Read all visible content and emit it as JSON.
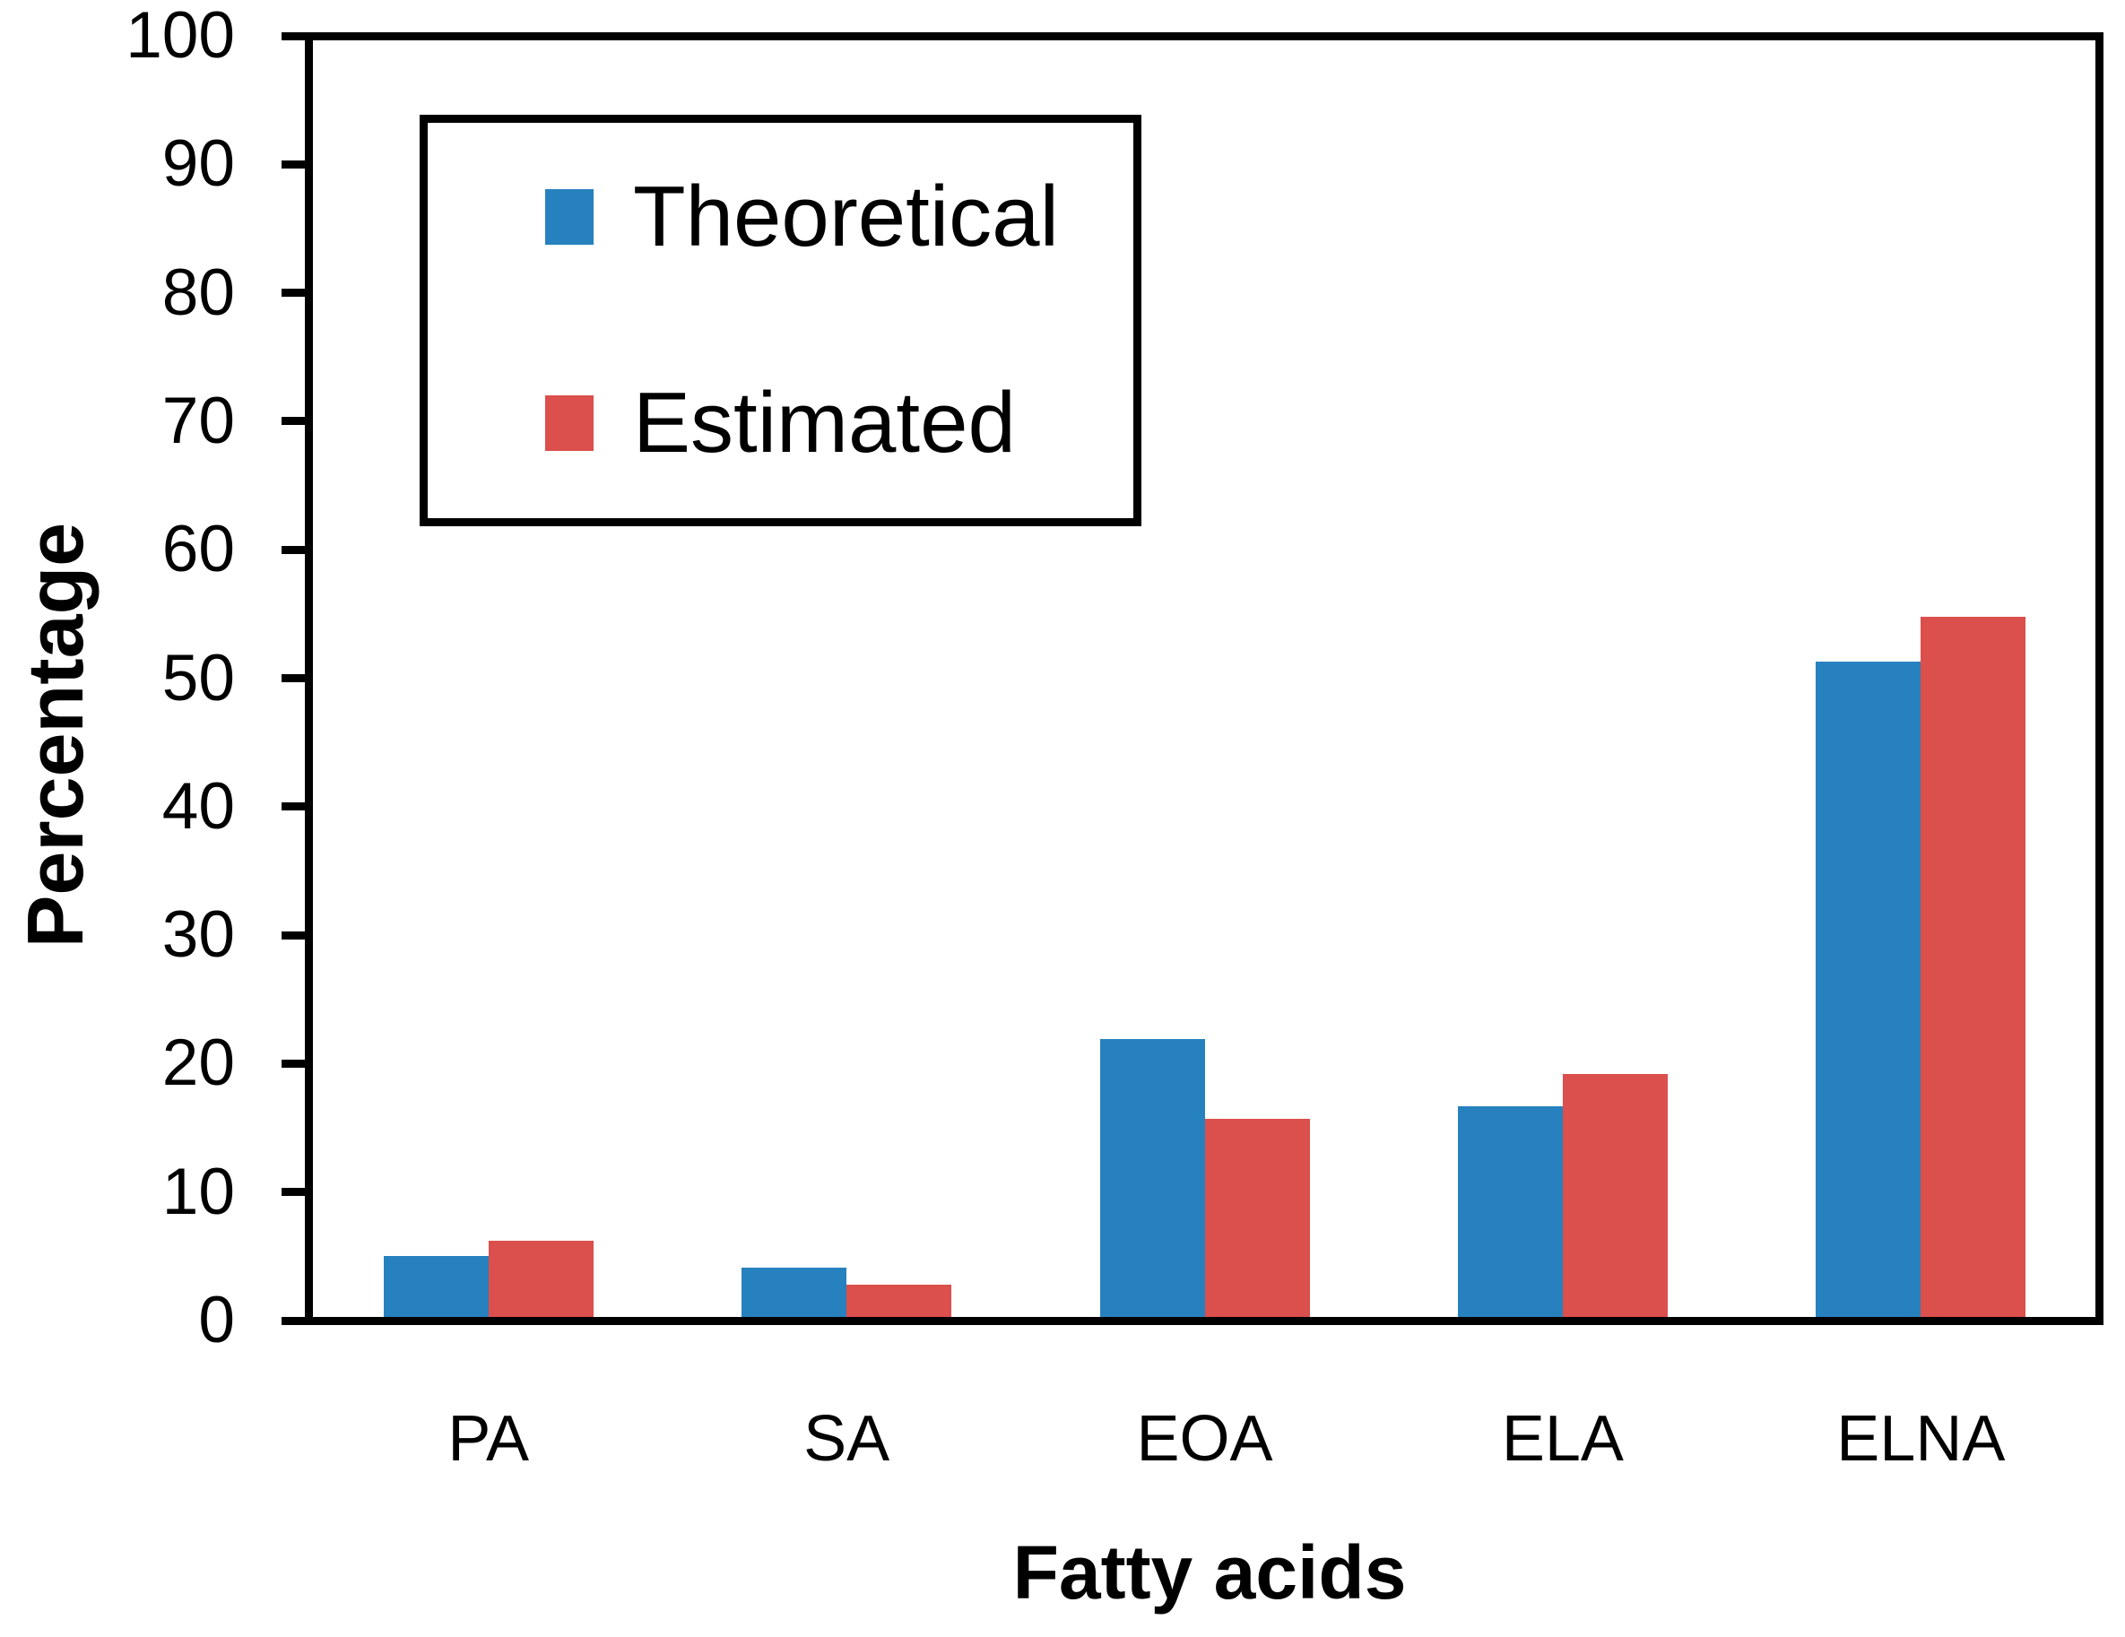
{
  "chart_data": {
    "type": "bar",
    "title": "",
    "xlabel": "Fatty acids",
    "ylabel": "Percentage",
    "categories": [
      "PA",
      "SA",
      "EOA",
      "ELA",
      "ELNA"
    ],
    "series": [
      {
        "name": "Theoretical",
        "color": "#2781be",
        "values": [
          5.0,
          4.1,
          21.9,
          16.7,
          51.3
        ]
      },
      {
        "name": "Estimated",
        "color": "#db4f4c",
        "values": [
          6.2,
          2.8,
          15.7,
          19.2,
          54.8
        ]
      }
    ],
    "ylim": [
      0,
      100
    ],
    "yticks": [
      0,
      10,
      20,
      30,
      40,
      50,
      60,
      70,
      80,
      90,
      100
    ],
    "grid": false,
    "legend_position": "upper-left-inside",
    "axis_color": "#000000",
    "background_color": "#ffffff"
  }
}
